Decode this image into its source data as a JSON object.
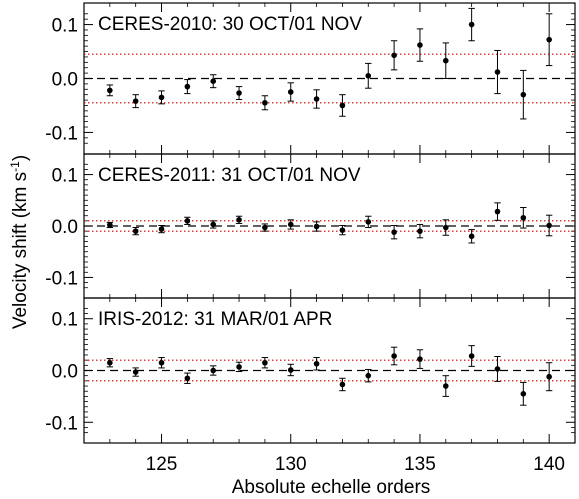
{
  "chart_data": {
    "type": "scatter",
    "xlabel": "Absolute echelle orders",
    "ylabel": "Velocity shift (km s",
    "ylabel_sup": "-1",
    "ylabel_close": ")",
    "xlim": [
      122,
      141
    ],
    "x_ticks": [
      125,
      130,
      135,
      140
    ],
    "ylim": [
      -0.14,
      0.14
    ],
    "y_ticks": [
      0.1,
      0.0,
      -0.1
    ],
    "y_tick_labels": [
      "0.1",
      "0.0",
      "-0.1"
    ],
    "orders": [
      123,
      124,
      125,
      126,
      127,
      128,
      129,
      130,
      131,
      132,
      133,
      134,
      135,
      136,
      137,
      138,
      139,
      140
    ],
    "panels": [
      {
        "title": "CERES-2010: 30 OCT/01 NOV",
        "threshold": 0.045,
        "points": [
          {
            "y": -0.022,
            "err": 0.01
          },
          {
            "y": -0.042,
            "err": 0.012
          },
          {
            "y": -0.035,
            "err": 0.012
          },
          {
            "y": -0.015,
            "err": 0.013
          },
          {
            "y": -0.005,
            "err": 0.012
          },
          {
            "y": -0.027,
            "err": 0.012
          },
          {
            "y": -0.045,
            "err": 0.013
          },
          {
            "y": -0.025,
            "err": 0.017
          },
          {
            "y": -0.038,
            "err": 0.017
          },
          {
            "y": -0.05,
            "err": 0.02
          },
          {
            "y": 0.005,
            "err": 0.023
          },
          {
            "y": 0.043,
            "err": 0.027
          },
          {
            "y": 0.062,
            "err": 0.03
          },
          {
            "y": 0.033,
            "err": 0.033
          },
          {
            "y": 0.1,
            "err": 0.03
          },
          {
            "y": 0.012,
            "err": 0.04
          },
          {
            "y": -0.03,
            "err": 0.045
          },
          {
            "y": 0.072,
            "err": 0.048
          }
        ]
      },
      {
        "title": "CERES-2011: 31 OCT/01 NOV",
        "threshold": 0.01,
        "points": [
          {
            "y": 0.002,
            "err": 0.005
          },
          {
            "y": -0.01,
            "err": 0.007
          },
          {
            "y": -0.006,
            "err": 0.007
          },
          {
            "y": 0.01,
            "err": 0.007
          },
          {
            "y": 0.003,
            "err": 0.007
          },
          {
            "y": 0.012,
            "err": 0.007
          },
          {
            "y": -0.003,
            "err": 0.007
          },
          {
            "y": 0.003,
            "err": 0.009
          },
          {
            "y": -0.001,
            "err": 0.009
          },
          {
            "y": -0.008,
            "err": 0.009
          },
          {
            "y": 0.008,
            "err": 0.011
          },
          {
            "y": -0.012,
            "err": 0.013
          },
          {
            "y": -0.01,
            "err": 0.013
          },
          {
            "y": -0.003,
            "err": 0.015
          },
          {
            "y": -0.02,
            "err": 0.013
          },
          {
            "y": 0.028,
            "err": 0.017
          },
          {
            "y": 0.016,
            "err": 0.02
          },
          {
            "y": 0.001,
            "err": 0.02
          }
        ]
      },
      {
        "title": "IRIS-2012: 31 MAR/01 APR",
        "threshold": 0.02,
        "points": [
          {
            "y": 0.015,
            "err": 0.008
          },
          {
            "y": -0.003,
            "err": 0.008
          },
          {
            "y": 0.015,
            "err": 0.01
          },
          {
            "y": -0.015,
            "err": 0.01
          },
          {
            "y": 0.0,
            "err": 0.009
          },
          {
            "y": 0.007,
            "err": 0.009
          },
          {
            "y": 0.015,
            "err": 0.01
          },
          {
            "y": 0.001,
            "err": 0.011
          },
          {
            "y": 0.013,
            "err": 0.012
          },
          {
            "y": -0.027,
            "err": 0.012
          },
          {
            "y": -0.01,
            "err": 0.012
          },
          {
            "y": 0.028,
            "err": 0.017
          },
          {
            "y": 0.022,
            "err": 0.018
          },
          {
            "y": -0.03,
            "err": 0.02
          },
          {
            "y": 0.028,
            "err": 0.02
          },
          {
            "y": 0.003,
            "err": 0.024
          },
          {
            "y": -0.045,
            "err": 0.022
          },
          {
            "y": -0.012,
            "err": 0.027
          }
        ]
      }
    ],
    "styles": {
      "marker_color": "#000000",
      "zero_line_color": "#000000",
      "threshold_color": "#d40000",
      "zero_line": "dashed",
      "threshold_lines": "dotted"
    }
  }
}
